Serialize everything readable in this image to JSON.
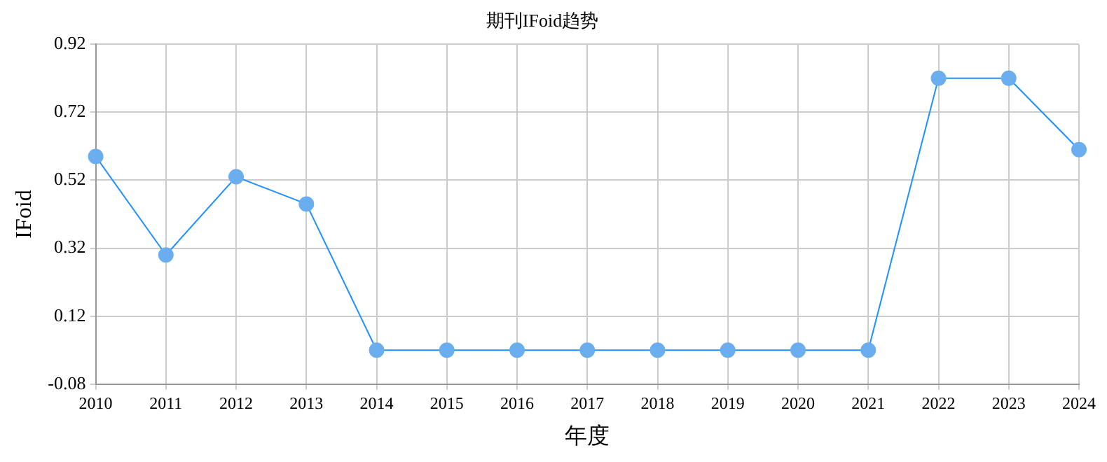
{
  "chart_data": {
    "type": "line",
    "title": "期刊IFoid趋势",
    "xlabel": "年度",
    "ylabel": "IFoid",
    "categories": [
      "2010",
      "2011",
      "2012",
      "2013",
      "2014",
      "2015",
      "2016",
      "2017",
      "2018",
      "2019",
      "2020",
      "2021",
      "2022",
      "2023",
      "2024"
    ],
    "series": [
      {
        "color": "#1e90ff",
        "values": [
          0.59,
          0.3,
          0.53,
          0.45,
          0.02,
          0.02,
          0.02,
          0.02,
          0.02,
          0.02,
          0.02,
          0.02,
          0.82,
          0.82,
          0.61
        ]
      }
    ],
    "ylim": [
      -0.08,
      0.92
    ],
    "yticks": [
      -0.08,
      0.12,
      0.32,
      0.52,
      0.72,
      0.92
    ],
    "grid": true,
    "marker": "circle",
    "legend": false
  }
}
